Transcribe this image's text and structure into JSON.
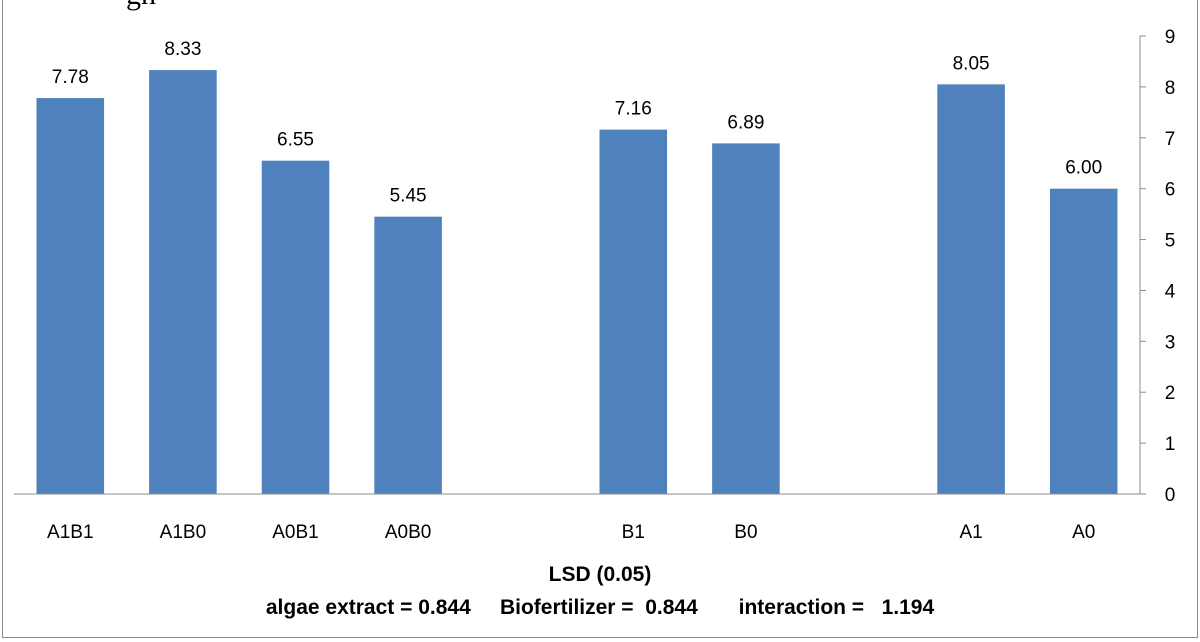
{
  "title_fragment": "gh",
  "chart_data": {
    "type": "bar",
    "categories": [
      "A1B1",
      "A1B0",
      "A0B1",
      "A0B0",
      "",
      "B1",
      "B0",
      "",
      "A1",
      "A0"
    ],
    "values": [
      7.78,
      8.33,
      6.55,
      5.45,
      null,
      7.16,
      6.89,
      null,
      8.05,
      6.0
    ],
    "data_labels": [
      "7.78",
      "8.33",
      "6.55",
      "5.45",
      "",
      "7.16",
      "6.89",
      "",
      "8.05",
      "6.00"
    ],
    "y_ticks": [
      "0",
      "1",
      "2",
      "3",
      "4",
      "5",
      "6",
      "7",
      "8",
      "9"
    ],
    "ylim": [
      0,
      9
    ],
    "y_axis_side": "right",
    "bar_color": "#4f81bd",
    "grid": false
  },
  "lsd": {
    "title": "LSD (0.05)",
    "values_line": "algae extract = 0.844     Biofertilizer =  0.844       interaction =   1.194"
  }
}
